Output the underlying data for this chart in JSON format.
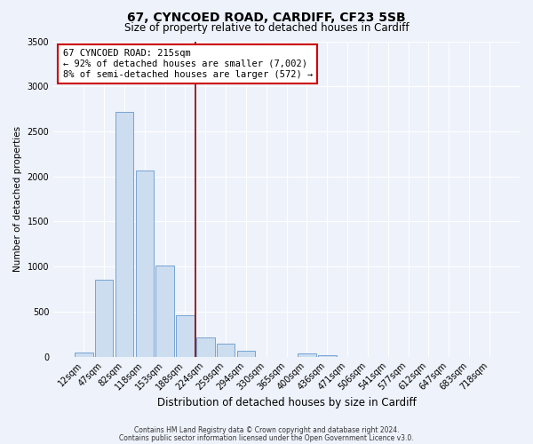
{
  "title1": "67, CYNCOED ROAD, CARDIFF, CF23 5SB",
  "title2": "Size of property relative to detached houses in Cardiff",
  "xlabel": "Distribution of detached houses by size in Cardiff",
  "ylabel": "Number of detached properties",
  "bar_labels": [
    "12sqm",
    "47sqm",
    "82sqm",
    "118sqm",
    "153sqm",
    "188sqm",
    "224sqm",
    "259sqm",
    "294sqm",
    "330sqm",
    "365sqm",
    "400sqm",
    "436sqm",
    "471sqm",
    "506sqm",
    "541sqm",
    "577sqm",
    "612sqm",
    "647sqm",
    "683sqm",
    "718sqm"
  ],
  "bar_values": [
    50,
    850,
    2720,
    2070,
    1010,
    460,
    215,
    140,
    60,
    0,
    0,
    40,
    20,
    0,
    0,
    0,
    0,
    0,
    0,
    0,
    0
  ],
  "bar_color": "#ccddf0",
  "bar_edge_color": "#6699cc",
  "ylim": [
    0,
    3500
  ],
  "yticks": [
    0,
    500,
    1000,
    1500,
    2000,
    2500,
    3000,
    3500
  ],
  "vline_color": "#880000",
  "annotation_title": "67 CYNCOED ROAD: 215sqm",
  "annotation_line1": "← 92% of detached houses are smaller (7,002)",
  "annotation_line2": "8% of semi-detached houses are larger (572) →",
  "annotation_box_color": "#ffffff",
  "annotation_box_edge": "#cc0000",
  "footer1": "Contains HM Land Registry data © Crown copyright and database right 2024.",
  "footer2": "Contains public sector information licensed under the Open Government Licence v3.0.",
  "background_color": "#eef2fa",
  "grid_color": "#ffffff",
  "title1_fontsize": 10,
  "title2_fontsize": 8.5,
  "xlabel_fontsize": 8.5,
  "ylabel_fontsize": 7.5,
  "tick_fontsize": 7,
  "annotation_fontsize": 7.5,
  "footer_fontsize": 5.5
}
